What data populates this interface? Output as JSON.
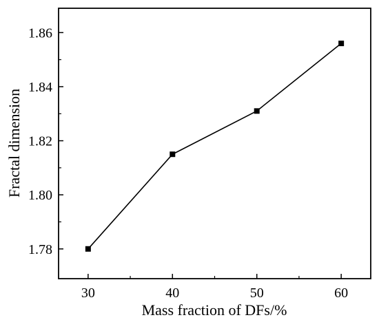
{
  "chart_data": {
    "type": "line",
    "xlabel": "Mass fraction of DFs/%",
    "ylabel": "Fractal dimension",
    "x": [
      30,
      40,
      50,
      60
    ],
    "series": [
      {
        "values": [
          1.78,
          1.815,
          1.831,
          1.856
        ]
      }
    ],
    "xlim": [
      26.5,
      63.5
    ],
    "ylim": [
      1.769,
      1.869
    ],
    "x_ticks": [
      30,
      40,
      50,
      60
    ],
    "x_tick_labels": [
      "30",
      "40",
      "50",
      "60"
    ],
    "y_ticks": [
      1.78,
      1.8,
      1.82,
      1.84,
      1.86
    ],
    "y_tick_labels": [
      "1.78",
      "1.80",
      "1.82",
      "1.84",
      "1.86"
    ],
    "grid": false,
    "legend": "none",
    "marker": "square",
    "line_color": "#000000"
  }
}
